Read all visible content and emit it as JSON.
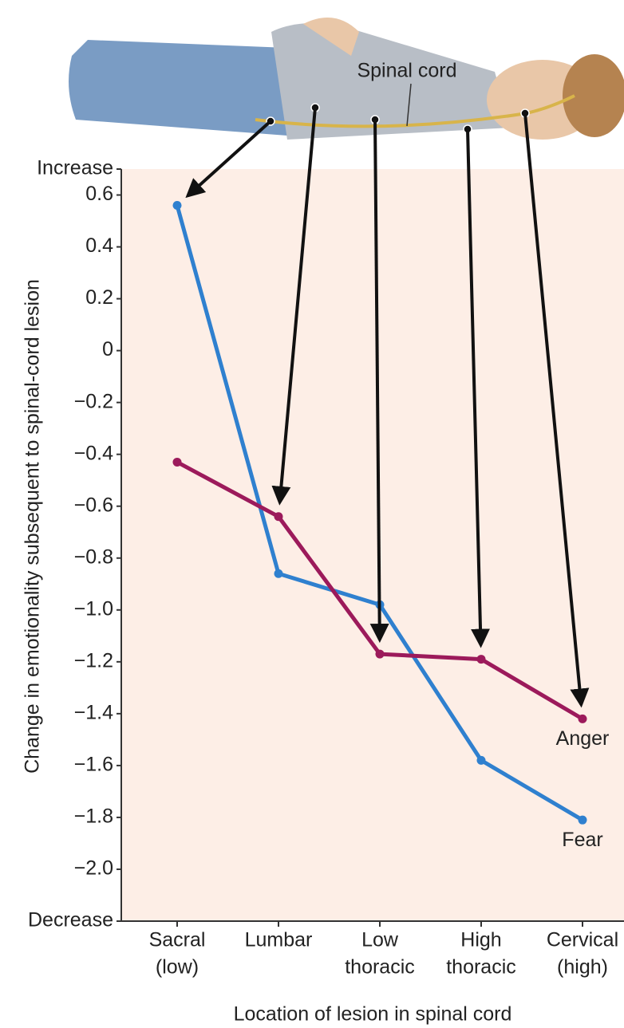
{
  "chart_data": {
    "type": "line",
    "illustration_label": "Spinal cord",
    "ylabel": "Change in emotionality subsequent to spinal-cord lesion",
    "xlabel": "Location of lesion in spinal cord",
    "categories": [
      [
        "Sacral",
        "(low)"
      ],
      [
        "Lumbar"
      ],
      [
        "Low",
        "thoracic"
      ],
      [
        "High",
        "thoracic"
      ],
      [
        "Cervical",
        "(high)"
      ]
    ],
    "series": [
      {
        "name": "Fear",
        "color": "#2f80cf",
        "values": [
          0.56,
          -0.86,
          -0.98,
          -1.58,
          -1.81
        ]
      },
      {
        "name": "Anger",
        "color": "#9c1a5b",
        "values": [
          -0.43,
          -0.64,
          -1.17,
          -1.19,
          -1.42
        ]
      }
    ],
    "ylim": [
      -2.2,
      0.7
    ],
    "yticks": [
      {
        "value": -2.2,
        "label": "Decrease"
      },
      {
        "value": -2.0,
        "label": "−2.0"
      },
      {
        "value": -1.8,
        "label": "−1.8"
      },
      {
        "value": -1.6,
        "label": "−1.6"
      },
      {
        "value": -1.4,
        "label": "−1.4"
      },
      {
        "value": -1.2,
        "label": "−1.2"
      },
      {
        "value": -1.0,
        "label": "−1.0"
      },
      {
        "value": -0.8,
        "label": "−0.8"
      },
      {
        "value": -0.6,
        "label": "−0.6"
      },
      {
        "value": -0.4,
        "label": "−0.4"
      },
      {
        "value": -0.2,
        "label": "−0.2"
      },
      0,
      0.2,
      0.4,
      0.6,
      {
        "value": 0.7,
        "label": "Increase"
      }
    ]
  }
}
